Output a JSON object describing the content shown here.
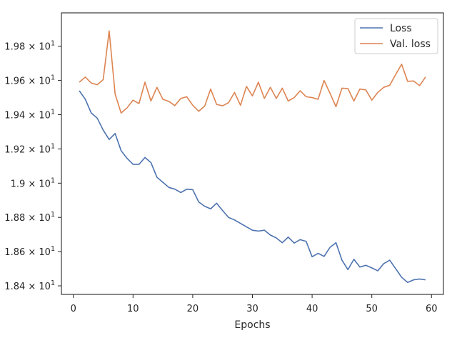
{
  "chart_data": {
    "type": "line",
    "title": "",
    "xlabel": "Epochs",
    "ylabel": "",
    "xlim": [
      -2,
      62
    ],
    "ylim": [
      18.35,
      19.995
    ],
    "x_ticks": [
      0,
      10,
      20,
      30,
      40,
      50,
      60
    ],
    "y_ticks": [
      {
        "value": 18.4,
        "mantissa": "1.84"
      },
      {
        "value": 18.6,
        "mantissa": "1.86"
      },
      {
        "value": 18.8,
        "mantissa": "1.88"
      },
      {
        "value": 19.0,
        "mantissa": "1.9"
      },
      {
        "value": 19.2,
        "mantissa": "1.92"
      },
      {
        "value": 19.4,
        "mantissa": "1.94"
      },
      {
        "value": 19.6,
        "mantissa": "1.96"
      },
      {
        "value": 19.8,
        "mantissa": "1.98"
      }
    ],
    "y_tick_suffix": "× 10",
    "y_tick_exponent": "1",
    "legend_position": "top-right",
    "grid": false,
    "x": [
      1,
      2,
      3,
      4,
      5,
      6,
      7,
      8,
      9,
      10,
      11,
      12,
      13,
      14,
      15,
      16,
      17,
      18,
      19,
      20,
      21,
      22,
      23,
      24,
      25,
      26,
      27,
      28,
      29,
      30,
      31,
      32,
      33,
      34,
      35,
      36,
      37,
      38,
      39,
      40,
      41,
      42,
      43,
      44,
      45,
      46,
      47,
      48,
      49,
      50,
      51,
      52,
      53,
      54,
      55,
      56,
      57,
      58,
      59
    ],
    "series": [
      {
        "name": "Loss",
        "color": "#4c72b0",
        "values": [
          19.54,
          19.49,
          19.41,
          19.38,
          19.31,
          19.255,
          19.29,
          19.19,
          19.145,
          19.11,
          19.11,
          19.15,
          19.12,
          19.035,
          19.005,
          18.975,
          18.965,
          18.945,
          18.965,
          18.962,
          18.89,
          18.865,
          18.85,
          18.883,
          18.84,
          18.8,
          18.785,
          18.765,
          18.745,
          18.725,
          18.72,
          18.725,
          18.697,
          18.68,
          18.652,
          18.685,
          18.65,
          18.67,
          18.66,
          18.57,
          18.59,
          18.572,
          18.625,
          18.652,
          18.55,
          18.495,
          18.555,
          18.51,
          18.52,
          18.505,
          18.488,
          18.53,
          18.55,
          18.5,
          18.45,
          18.42,
          18.435,
          18.44,
          18.435
        ]
      },
      {
        "name": "Val. loss",
        "color": "#dd8452",
        "values": [
          19.59,
          19.62,
          19.585,
          19.575,
          19.605,
          19.89,
          19.52,
          19.41,
          19.44,
          19.485,
          19.465,
          19.59,
          19.48,
          19.56,
          19.49,
          19.478,
          19.453,
          19.495,
          19.505,
          19.455,
          19.42,
          19.45,
          19.55,
          19.46,
          19.452,
          19.47,
          19.53,
          19.455,
          19.565,
          19.51,
          19.59,
          19.495,
          19.56,
          19.495,
          19.555,
          19.48,
          19.5,
          19.54,
          19.505,
          19.5,
          19.49,
          19.6,
          19.525,
          19.447,
          19.555,
          19.553,
          19.48,
          19.55,
          19.545,
          19.485,
          19.53,
          19.56,
          19.572,
          19.635,
          19.695,
          19.595,
          19.597,
          19.57,
          19.62
        ]
      }
    ]
  }
}
